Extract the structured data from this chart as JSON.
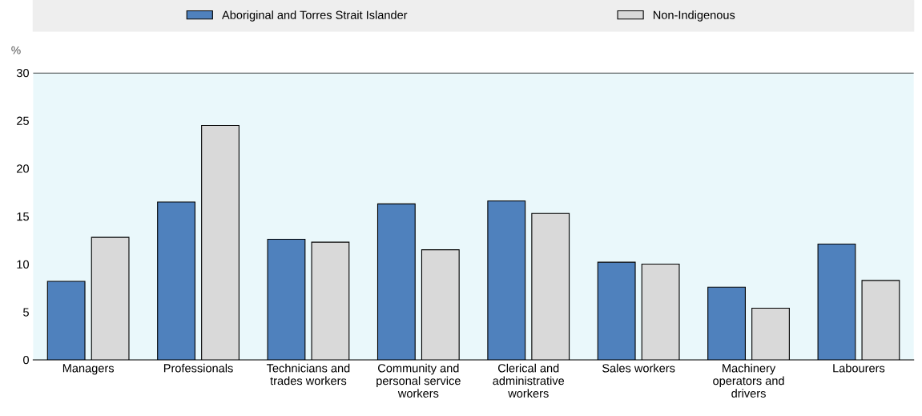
{
  "chart_data": {
    "type": "bar",
    "ylabel": "%",
    "categories": [
      "Managers",
      "Professionals",
      "Technicians and\ntrades workers",
      "Community and\npersonal service\nworkers",
      "Clerical and\nadministrative\nworkers",
      "Sales workers",
      "Machinery\noperators and\ndrivers",
      "Labourers"
    ],
    "series": [
      {
        "name": "Aboriginal and Torres Strait Islander",
        "color": "#4f81bd",
        "values": [
          8.2,
          16.5,
          12.6,
          16.3,
          16.6,
          10.2,
          7.6,
          12.1
        ]
      },
      {
        "name": "Non-Indigenous",
        "color": "#d9d9d9",
        "values": [
          12.8,
          24.5,
          12.3,
          11.5,
          15.3,
          10.0,
          5.4,
          8.3
        ]
      }
    ],
    "ylim": [
      0,
      30
    ],
    "yticks": [
      0,
      5,
      10,
      15,
      20,
      25,
      30
    ],
    "grid": false,
    "legend": "top"
  }
}
